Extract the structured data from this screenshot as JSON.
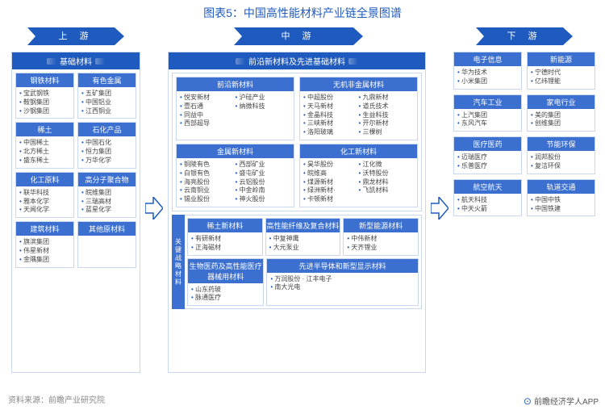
{
  "title": "图表5：中国高性能材料产业链全景图谱",
  "colors": {
    "primary": "#1f5bbf",
    "primaryLight": "#3b6fd0",
    "border": "#c9d8ef",
    "text": "#444"
  },
  "stages": {
    "upstream": "上 游",
    "midstream": "中 游",
    "downstream": "下 游"
  },
  "upstream": {
    "header": "基础材料",
    "cells": [
      {
        "title": "钢铁材料",
        "items": [
          "宝武钢铁",
          "鞍钢集团",
          "沙钢集团"
        ]
      },
      {
        "title": "有色金属",
        "items": [
          "五矿集团",
          "中国铝业",
          "江西铜业"
        ]
      },
      {
        "title": "稀土",
        "items": [
          "中国稀土",
          "北方稀土",
          "盛东稀土"
        ]
      },
      {
        "title": "石化产品",
        "items": [
          "中国石化",
          "恒力集团",
          "万华化学"
        ]
      },
      {
        "title": "化工原料",
        "items": [
          "联华科技",
          "雅本化学",
          "天闻化学"
        ]
      },
      {
        "title": "高分子聚合物",
        "items": [
          "皖维集团",
          "三瑞高材",
          "蓝星化学"
        ]
      },
      {
        "title": "建筑材料",
        "items": [
          "旗滨集团",
          "伟星新材",
          "金隅集团"
        ]
      },
      {
        "title": "其他原材料",
        "items": []
      }
    ]
  },
  "midstream": {
    "header": "前沿新材料及先进基础材料",
    "row1": [
      {
        "title": "前沿新材料",
        "cols": [
          [
            "悦安新材",
            "壹石通",
            "同益中",
            "西部超导"
          ],
          [
            "沪硅产业",
            "纳微科技"
          ]
        ]
      },
      {
        "title": "无机非金属材料",
        "cols": [
          [
            "中超股份",
            "天马新材",
            "金晶科技",
            "三峡新材",
            "洛阳玻璃"
          ],
          [
            "九鼎新材",
            "道氏技术",
            "生益科技",
            "开尔新材",
            "三棵树"
          ]
        ]
      }
    ],
    "row2": [
      {
        "title": "金属新材料",
        "cols": [
          [
            "铜陵有色",
            "白银有色",
            "海亮股份",
            "云南铜业",
            "锡业股份"
          ],
          [
            "西部矿业",
            "盛屯矿业",
            "云铝股份",
            "中金岭南",
            "神火股份"
          ]
        ]
      },
      {
        "title": "化工新材料",
        "cols": [
          [
            "昊华股份",
            "皖维高",
            "煤源新材",
            "绿洲新材·",
            "卡顿新材"
          ],
          [
            "江化微",
            "沃特股份",
            "鼎龙材料",
            "飞凯材料"
          ]
        ]
      }
    ],
    "strategic": {
      "label": "关键战略材料",
      "row1": [
        {
          "title": "稀土新材料",
          "items": [
            "有研新材",
            "正海磁材"
          ]
        },
        {
          "title": "高性能纤维及复合材料",
          "items": [
            "中复神鹰",
            "大元泵业"
          ]
        },
        {
          "title": "新型能源材料",
          "items": [
            "中伟新材",
            "天齐锂业"
          ]
        }
      ],
      "row2": [
        {
          "title": "生物医药及高性能医疗器械用材料",
          "items": [
            "山东药玻",
            "脉通医疗"
          ],
          "span": 1
        },
        {
          "title": "先进半导体和新型显示材料",
          "items": [
            "万润股份 · 江丰电子",
            "南大光电"
          ],
          "span": 2
        }
      ]
    }
  },
  "downstream": [
    {
      "title": "电子信息",
      "items": [
        "华为技术",
        "小米集团"
      ]
    },
    {
      "title": "新能源",
      "items": [
        "宁德时代",
        "亿纬锂能"
      ]
    },
    {
      "title": "汽车工业",
      "items": [
        "上汽集团",
        "东风汽车"
      ]
    },
    {
      "title": "家电行业",
      "items": [
        "美的集团",
        "创维集团"
      ]
    },
    {
      "title": "医疗医药",
      "items": [
        "迈瑞医疗",
        "乐普医疗"
      ]
    },
    {
      "title": "节能环保",
      "items": [
        "润邦股份",
        "复洁环保"
      ]
    },
    {
      "title": "航空航天",
      "items": [
        "航天科技",
        "中天火箭"
      ]
    },
    {
      "title": "轨道交通",
      "items": [
        "中国中铁",
        "中国铁建"
      ]
    }
  ],
  "footer": {
    "source": "资料来源：前瞻产业研究院",
    "brand": "前瞻经济学人APP"
  },
  "watermark": "前瞻产业研究院"
}
